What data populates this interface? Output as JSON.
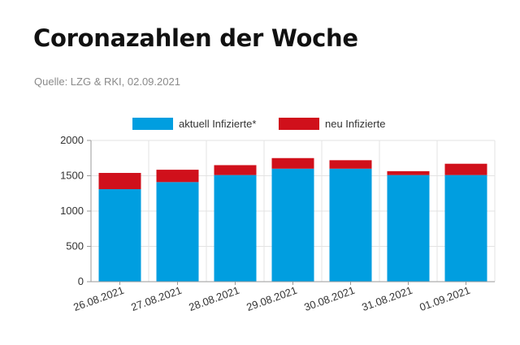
{
  "title": "Coronazahlen der Woche",
  "source": "Quelle: LZG & RKI, 02.09.2021",
  "chart_data": {
    "type": "bar",
    "stacked": true,
    "categories": [
      "26.08.2021",
      "27.08.2021",
      "28.08.2021",
      "29.08.2021",
      "30.08.2021",
      "31.08.2021",
      "01.09.2021"
    ],
    "series": [
      {
        "name": "aktuell Infizierte*",
        "color": "#009ee0",
        "values": [
          1310,
          1410,
          1510,
          1600,
          1600,
          1510,
          1510
        ]
      },
      {
        "name": "neu Infizierte",
        "color": "#d0101b",
        "values": [
          230,
          175,
          140,
          150,
          120,
          55,
          160
        ]
      }
    ],
    "ylim": [
      0,
      2000
    ],
    "yticks": [
      0,
      500,
      1000,
      1500,
      2000
    ],
    "grid": true,
    "legend_position": "top"
  }
}
